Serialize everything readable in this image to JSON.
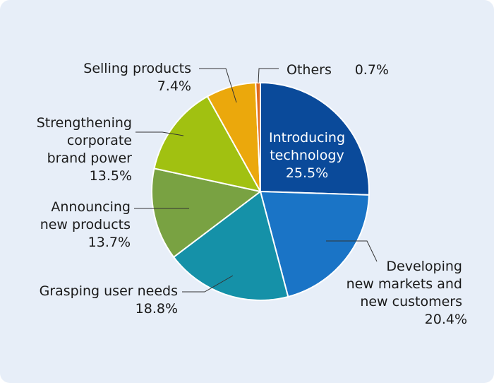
{
  "chart_data": {
    "type": "pie",
    "title": "",
    "start": "12 o'clock",
    "direction": "clockwise",
    "slices": [
      {
        "key": "introducing",
        "label_lines": [
          "Introducing",
          "technology"
        ],
        "value": 25.5,
        "value_text": "25.5%",
        "color": "#0a4a9a"
      },
      {
        "key": "developing",
        "label_lines": [
          "Developing",
          "new markets and",
          "new customers"
        ],
        "value": 20.4,
        "value_text": "20.4%",
        "color": "#1a74c6"
      },
      {
        "key": "grasping",
        "label_lines": [
          "Grasping user needs"
        ],
        "value": 18.8,
        "value_text": "18.8%",
        "color": "#1591a8"
      },
      {
        "key": "announcing",
        "label_lines": [
          "Announcing",
          "new products"
        ],
        "value": 13.7,
        "value_text": "13.7%",
        "color": "#79a242"
      },
      {
        "key": "strengthening",
        "label_lines": [
          "Strengthening",
          "corporate",
          "brand power"
        ],
        "value": 13.5,
        "value_text": "13.5%",
        "color": "#a1c111"
      },
      {
        "key": "selling",
        "label_lines": [
          "Selling products"
        ],
        "value": 7.4,
        "value_text": "7.4%",
        "color": "#eba80c"
      },
      {
        "key": "others",
        "label_lines": [
          "Others"
        ],
        "value": 0.7,
        "value_text": "0.7%",
        "color": "#e06a1c"
      }
    ]
  }
}
